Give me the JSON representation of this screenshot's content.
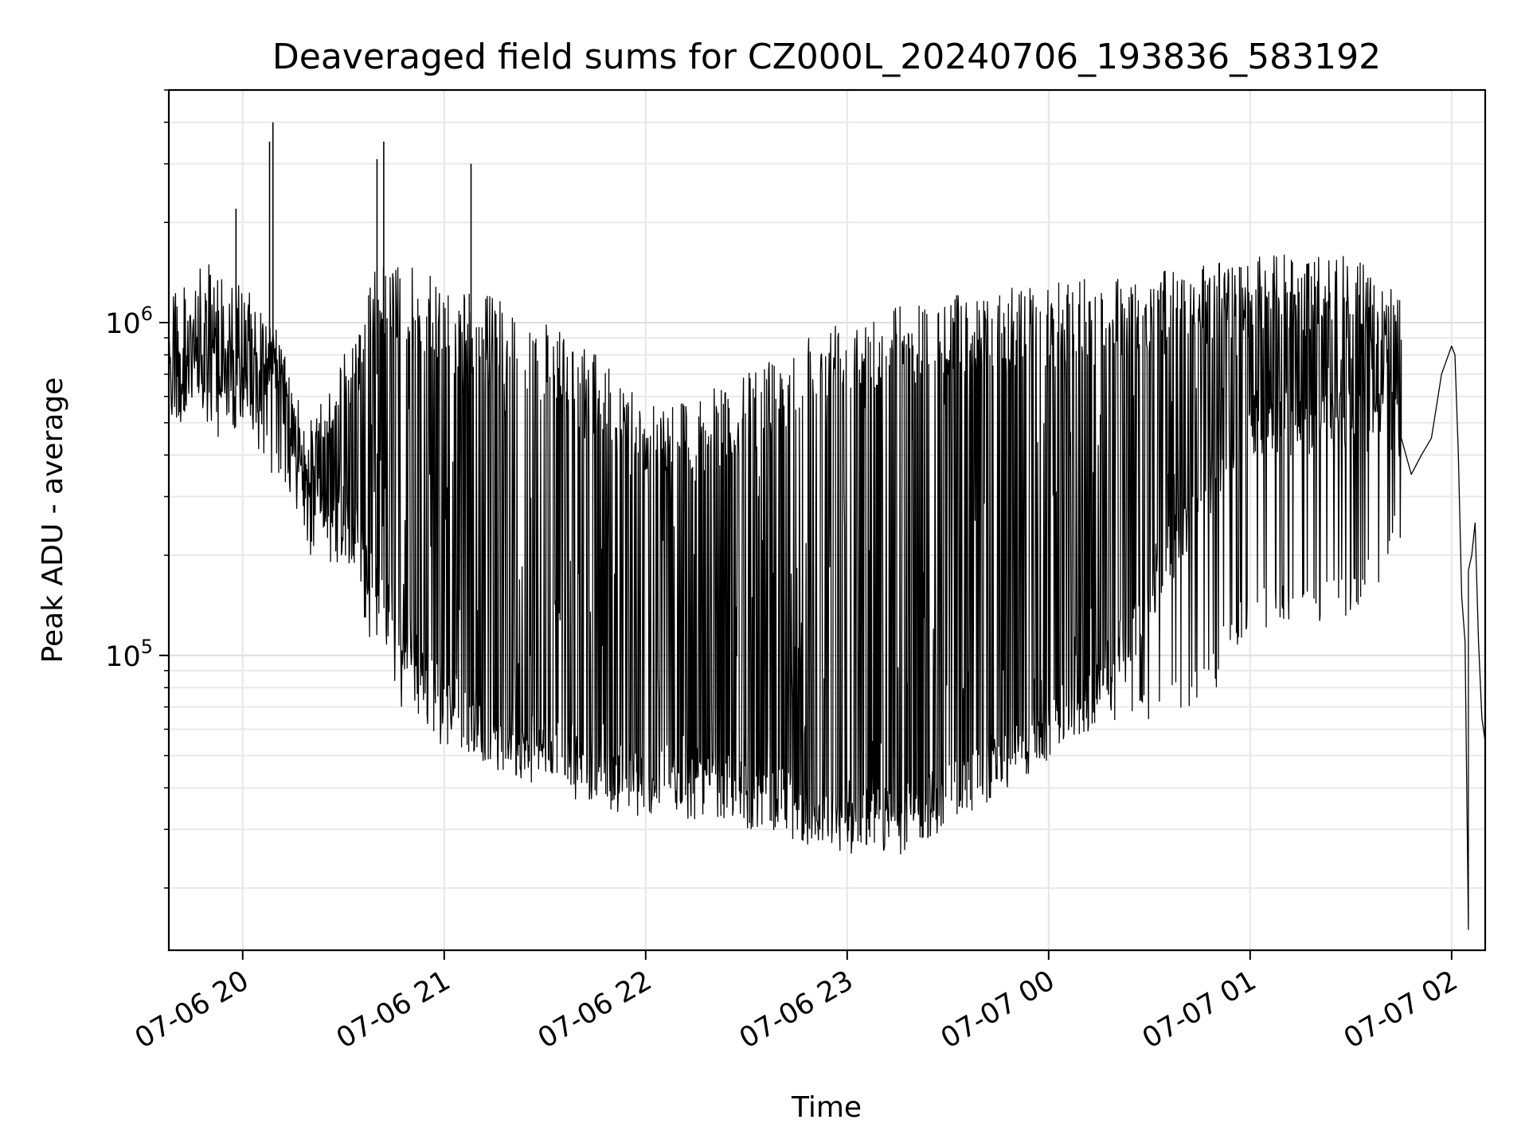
{
  "chart_data": {
    "type": "line",
    "title": "Deaveraged field sums for CZ000L_20240706_193836_583192",
    "xlabel": "Time",
    "ylabel": "Peak ADU - average",
    "xlim": [
      "2024-07-06 19:38",
      "2024-07-07 02:10"
    ],
    "ylim": [
      13000,
      5000000
    ],
    "yscale": "log",
    "grid": true,
    "line_color": "#000000",
    "x_ticks": [
      {
        "value": "2024-07-06 20:00",
        "label": "07-06 20"
      },
      {
        "value": "2024-07-06 21:00",
        "label": "07-06 21"
      },
      {
        "value": "2024-07-06 22:00",
        "label": "07-06 22"
      },
      {
        "value": "2024-07-06 23:00",
        "label": "07-06 23"
      },
      {
        "value": "2024-07-07 00:00",
        "label": "07-07 00"
      },
      {
        "value": "2024-07-07 01:00",
        "label": "07-07 01"
      },
      {
        "value": "2024-07-07 02:00",
        "label": "07-07 02"
      }
    ],
    "y_ticks": [
      {
        "value": 100000,
        "base": "10",
        "exp": "5"
      },
      {
        "value": 1000000,
        "base": "10",
        "exp": "6"
      }
    ],
    "envelope": {
      "x": [
        "2024-07-06 19:38",
        "2024-07-06 19:50",
        "2024-07-06 20:00",
        "2024-07-06 20:06",
        "2024-07-06 20:10",
        "2024-07-06 20:15",
        "2024-07-06 20:20",
        "2024-07-06 20:30",
        "2024-07-06 20:40",
        "2024-07-06 20:50",
        "2024-07-06 21:00",
        "2024-07-06 21:15",
        "2024-07-06 21:30",
        "2024-07-06 21:45",
        "2024-07-06 22:00",
        "2024-07-06 22:15",
        "2024-07-06 22:30",
        "2024-07-06 22:45",
        "2024-07-06 23:00",
        "2024-07-06 23:15",
        "2024-07-06 23:30",
        "2024-07-06 23:45",
        "2024-07-07 00:00",
        "2024-07-07 00:15",
        "2024-07-07 00:30",
        "2024-07-07 00:45",
        "2024-07-07 01:00",
        "2024-07-07 01:15",
        "2024-07-07 01:30",
        "2024-07-07 01:45"
      ],
      "base": [
        700000,
        650000,
        650000,
        600000,
        800000,
        500000,
        280000,
        250000,
        170000,
        100000,
        75000,
        60000,
        55000,
        48000,
        42000,
        42000,
        40000,
        35000,
        32000,
        32000,
        38000,
        48000,
        60000,
        80000,
        150000,
        300000,
        500000,
        500000,
        500000,
        500000
      ],
      "top": [
        1300000,
        1500000,
        1300000,
        1100000,
        900000,
        700000,
        500000,
        800000,
        1500000,
        1500000,
        1300000,
        1200000,
        1000000,
        800000,
        600000,
        600000,
        700000,
        900000,
        1100000,
        1150000,
        1200000,
        1300000,
        1300000,
        1400000,
        1400000,
        1500000,
        1600000,
        1600000,
        1600000,
        1200000
      ],
      "dips": [
        500000,
        450000,
        450000,
        400000,
        300000,
        300000,
        200000,
        180000,
        100000,
        60000,
        48000,
        45000,
        40000,
        35000,
        32000,
        32000,
        30000,
        27000,
        25000,
        25000,
        30000,
        40000,
        50000,
        60000,
        60000,
        65000,
        120000,
        120000,
        130000,
        200000
      ]
    },
    "tail": {
      "x": [
        "2024-07-07 01:45",
        "2024-07-07 01:48",
        "2024-07-07 01:51",
        "2024-07-07 01:54",
        "2024-07-07 01:57",
        "2024-07-07 02:00",
        "2024-07-07 02:01",
        "2024-07-07 02:02",
        "2024-07-07 02:03",
        "2024-07-07 02:04",
        "2024-07-07 02:05",
        "2024-07-07 02:05",
        "2024-07-07 02:06",
        "2024-07-07 02:07",
        "2024-07-07 02:08",
        "2024-07-07 02:09",
        "2024-07-07 02:10"
      ],
      "y": [
        450000,
        350000,
        400000,
        450000,
        700000,
        850000,
        800000,
        400000,
        150000,
        110000,
        15000,
        180000,
        200000,
        250000,
        110000,
        65000,
        55000
      ]
    },
    "spikes": [
      {
        "x": "2024-07-06 19:58",
        "y": 2200000
      },
      {
        "x": "2024-07-06 20:08",
        "y": 3500000
      },
      {
        "x": "2024-07-06 20:09",
        "y": 4000000
      },
      {
        "x": "2024-07-06 20:40",
        "y": 3100000
      },
      {
        "x": "2024-07-06 20:42",
        "y": 3500000
      },
      {
        "x": "2024-07-06 21:08",
        "y": 3000000
      }
    ]
  }
}
